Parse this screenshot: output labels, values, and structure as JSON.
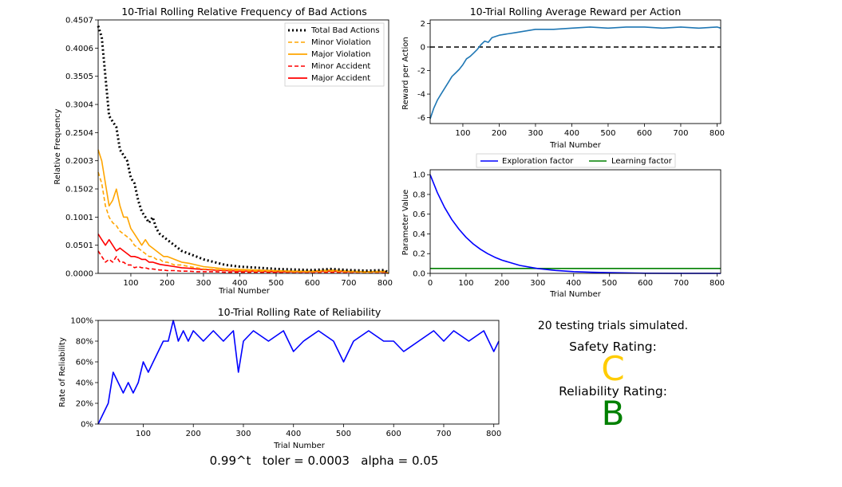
{
  "chart_data": [
    {
      "id": "bad",
      "type": "line",
      "title": "10-Trial Rolling Relative Frequency of Bad Actions",
      "xlabel": "Trial Number",
      "ylabel": "Relative Frequency",
      "xlim": [
        10,
        810
      ],
      "ylim": [
        0,
        0.4507
      ],
      "xticks": [
        "100",
        "200",
        "300",
        "400",
        "500",
        "600",
        "700",
        "800"
      ],
      "yticks": [
        "0.0000",
        "0.0501",
        "0.1001",
        "0.1502",
        "0.2003",
        "0.2504",
        "0.3004",
        "0.3505",
        "0.4006",
        "0.4507"
      ],
      "legend_loc": "upper right",
      "x": [
        10,
        20,
        30,
        40,
        50,
        60,
        70,
        80,
        90,
        100,
        110,
        120,
        130,
        140,
        150,
        160,
        170,
        180,
        190,
        200,
        220,
        240,
        260,
        280,
        300,
        330,
        360,
        400,
        450,
        500,
        550,
        600,
        650,
        700,
        750,
        800,
        810
      ],
      "series": [
        {
          "name": "Total Bad Actions",
          "color": "#000000",
          "dash": "dotted",
          "values": [
            0.44,
            0.42,
            0.35,
            0.28,
            0.27,
            0.26,
            0.22,
            0.21,
            0.2,
            0.17,
            0.16,
            0.13,
            0.11,
            0.1,
            0.09,
            0.1,
            0.08,
            0.07,
            0.065,
            0.06,
            0.05,
            0.04,
            0.035,
            0.03,
            0.025,
            0.02,
            0.015,
            0.012,
            0.01,
            0.008,
            0.007,
            0.006,
            0.008,
            0.006,
            0.005,
            0.006,
            0.0
          ]
        },
        {
          "name": "Minor Violation",
          "color": "#ffa500",
          "dash": "dashed",
          "values": [
            0.18,
            0.16,
            0.12,
            0.1,
            0.09,
            0.085,
            0.075,
            0.07,
            0.065,
            0.06,
            0.05,
            0.045,
            0.04,
            0.035,
            0.03,
            0.03,
            0.025,
            0.025,
            0.02,
            0.02,
            0.015,
            0.015,
            0.012,
            0.01,
            0.008,
            0.007,
            0.006,
            0.005,
            0.004,
            0.004,
            0.003,
            0.003,
            0.004,
            0.003,
            0.002,
            0.003,
            0.0
          ]
        },
        {
          "name": "Major Violation",
          "color": "#ffa500",
          "dash": "solid",
          "values": [
            0.22,
            0.2,
            0.16,
            0.12,
            0.13,
            0.15,
            0.12,
            0.1,
            0.1,
            0.08,
            0.07,
            0.06,
            0.05,
            0.06,
            0.05,
            0.045,
            0.04,
            0.035,
            0.03,
            0.03,
            0.025,
            0.02,
            0.018,
            0.015,
            0.012,
            0.01,
            0.008,
            0.007,
            0.006,
            0.005,
            0.004,
            0.004,
            0.006,
            0.004,
            0.003,
            0.004,
            0.0
          ]
        },
        {
          "name": "Minor Accident",
          "color": "#ff0000",
          "dash": "dashed",
          "values": [
            0.04,
            0.03,
            0.02,
            0.025,
            0.02,
            0.03,
            0.02,
            0.02,
            0.015,
            0.015,
            0.01,
            0.012,
            0.01,
            0.01,
            0.008,
            0.008,
            0.007,
            0.006,
            0.006,
            0.005,
            0.005,
            0.004,
            0.004,
            0.003,
            0.003,
            0.003,
            0.002,
            0.002,
            0.002,
            0.002,
            0.002,
            0.002,
            0.002,
            0.002,
            0.002,
            0.002,
            0.0
          ]
        },
        {
          "name": "Major Accident",
          "color": "#ff0000",
          "dash": "solid",
          "values": [
            0.07,
            0.06,
            0.05,
            0.06,
            0.05,
            0.04,
            0.045,
            0.04,
            0.035,
            0.03,
            0.03,
            0.028,
            0.025,
            0.025,
            0.02,
            0.02,
            0.018,
            0.016,
            0.015,
            0.014,
            0.012,
            0.01,
            0.009,
            0.008,
            0.007,
            0.006,
            0.005,
            0.004,
            0.004,
            0.003,
            0.003,
            0.003,
            0.004,
            0.003,
            0.003,
            0.003,
            0.0
          ]
        }
      ]
    },
    {
      "id": "reward",
      "type": "line",
      "title": "10-Trial Rolling Average Reward per Action",
      "xlabel": "Trial Number",
      "ylabel": "Reward per Action",
      "xlim": [
        10,
        810
      ],
      "ylim": [
        -6.5,
        2.3
      ],
      "xticks": [
        "100",
        "200",
        "300",
        "400",
        "500",
        "600",
        "700",
        "800"
      ],
      "yticks": [
        "-6",
        "-4",
        "-2",
        "0",
        "2"
      ],
      "reference_line": {
        "y": 0,
        "style": "dashed",
        "color": "#000000"
      },
      "x": [
        10,
        20,
        30,
        40,
        50,
        60,
        70,
        80,
        90,
        100,
        110,
        120,
        130,
        140,
        150,
        160,
        170,
        180,
        190,
        200,
        220,
        240,
        260,
        280,
        300,
        350,
        400,
        450,
        500,
        550,
        600,
        650,
        700,
        750,
        800,
        810
      ],
      "series": [
        {
          "name": "Reward",
          "color": "#1f77b4",
          "values": [
            -6.1,
            -5.2,
            -4.5,
            -4.0,
            -3.5,
            -3.0,
            -2.5,
            -2.2,
            -1.9,
            -1.5,
            -1.0,
            -0.8,
            -0.5,
            -0.2,
            0.2,
            0.5,
            0.4,
            0.8,
            0.9,
            1.0,
            1.1,
            1.2,
            1.3,
            1.4,
            1.5,
            1.5,
            1.6,
            1.7,
            1.6,
            1.7,
            1.7,
            1.6,
            1.7,
            1.6,
            1.7,
            1.6
          ]
        }
      ]
    },
    {
      "id": "params",
      "type": "line",
      "xlabel": "Trial Number",
      "ylabel": "Parameter Value",
      "xlim": [
        0,
        810
      ],
      "ylim": [
        0,
        1.05
      ],
      "xticks": [
        "0",
        "100",
        "200",
        "300",
        "400",
        "500",
        "600",
        "700",
        "800"
      ],
      "yticks": [
        "0.0",
        "0.2",
        "0.4",
        "0.6",
        "0.8",
        "1.0"
      ],
      "legend_loc": "upper center (outside)",
      "x": [
        0,
        20,
        40,
        60,
        80,
        100,
        120,
        140,
        160,
        180,
        200,
        250,
        300,
        350,
        400,
        450,
        500,
        600,
        700,
        810
      ],
      "series": [
        {
          "name": "Exploration factor",
          "color": "#0000ff",
          "values": [
            1.0,
            0.818,
            0.669,
            0.547,
            0.448,
            0.366,
            0.299,
            0.245,
            0.2,
            0.164,
            0.134,
            0.081,
            0.049,
            0.03,
            0.018,
            0.011,
            0.007,
            0.002,
            0.001,
            0.0
          ]
        },
        {
          "name": "Learning factor",
          "color": "#008000",
          "values": [
            0.05,
            0.05,
            0.05,
            0.05,
            0.05,
            0.05,
            0.05,
            0.05,
            0.05,
            0.05,
            0.05,
            0.05,
            0.05,
            0.05,
            0.05,
            0.05,
            0.05,
            0.05,
            0.05,
            0.05
          ]
        }
      ]
    },
    {
      "id": "reliability",
      "type": "line",
      "title": "10-Trial Rolling Rate of Reliability",
      "xlabel": "Trial Number",
      "ylabel": "Rate of Reliability",
      "xlim": [
        10,
        810
      ],
      "ylim": [
        0,
        100
      ],
      "xticks": [
        "100",
        "200",
        "300",
        "400",
        "500",
        "600",
        "700",
        "800"
      ],
      "yticks": [
        "0%",
        "20%",
        "40%",
        "60%",
        "80%",
        "100%"
      ],
      "x": [
        10,
        20,
        30,
        40,
        50,
        60,
        70,
        80,
        90,
        100,
        110,
        120,
        130,
        140,
        150,
        160,
        170,
        180,
        190,
        200,
        220,
        240,
        260,
        280,
        290,
        300,
        320,
        350,
        380,
        400,
        420,
        450,
        480,
        500,
        520,
        550,
        580,
        600,
        620,
        650,
        680,
        700,
        720,
        750,
        780,
        800,
        810
      ],
      "series": [
        {
          "name": "Reliability",
          "color": "#0000ff",
          "values": [
            0,
            10,
            20,
            50,
            40,
            30,
            40,
            30,
            40,
            60,
            50,
            60,
            70,
            80,
            80,
            100,
            80,
            90,
            80,
            90,
            80,
            90,
            80,
            90,
            50,
            80,
            90,
            80,
            90,
            70,
            80,
            90,
            80,
            60,
            80,
            90,
            80,
            80,
            70,
            80,
            90,
            80,
            90,
            80,
            90,
            70,
            80
          ]
        }
      ]
    }
  ],
  "summary": {
    "trials_text": "20 testing trials simulated.",
    "safety_label": "Safety Rating:",
    "safety_grade": "C",
    "safety_color": "#ffcc00",
    "reliability_label": "Reliability Rating:",
    "reliability_grade": "B",
    "reliability_color": "#008000"
  },
  "footer": {
    "formula": "0.99^t",
    "toler": "toler = 0.0003",
    "alpha": "alpha = 0.05"
  }
}
